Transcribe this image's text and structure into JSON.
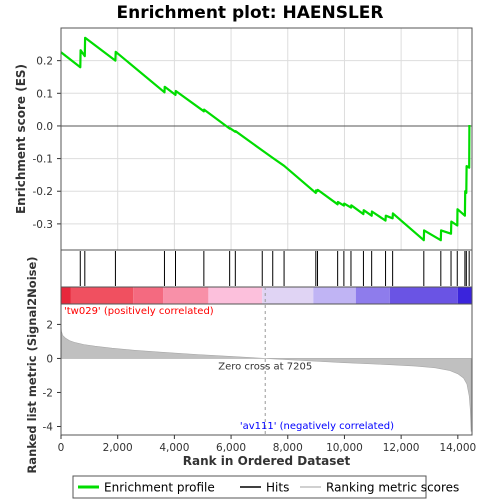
{
  "chart_data": {
    "type": "line",
    "title": "Enrichment plot: HAENSLER",
    "x_range": [
      0,
      14500
    ],
    "x_ticks": [
      0,
      2000,
      4000,
      6000,
      8000,
      10000,
      12000,
      14000
    ],
    "x_tick_labels": [
      "0",
      "2,000",
      "4,000",
      "6,000",
      "8,000",
      "10,000",
      "12,000",
      "14,000"
    ],
    "xlabel": "Rank in Ordered Dataset",
    "es_panel": {
      "ylabel": "Enrichment score (ES)",
      "ylim": [
        -0.38,
        0.3
      ],
      "y_ticks": [
        0.2,
        0.1,
        0.0,
        -0.1,
        -0.2,
        -0.3
      ],
      "y_tick_labels": [
        "0.2",
        "0.1",
        "0.0",
        "-0.1",
        "-0.2",
        "-0.3"
      ],
      "series_name": "Enrichment profile",
      "color": "#00dd00",
      "profile": [
        [
          0,
          0.226
        ],
        [
          680,
          0.18
        ],
        [
          690,
          0.232
        ],
        [
          840,
          0.214
        ],
        [
          850,
          0.27
        ],
        [
          1920,
          0.2
        ],
        [
          1930,
          0.227
        ],
        [
          3650,
          0.103
        ],
        [
          3660,
          0.12
        ],
        [
          4040,
          0.095
        ],
        [
          4050,
          0.107
        ],
        [
          5040,
          0.045
        ],
        [
          5050,
          0.05
        ],
        [
          5950,
          -0.008
        ],
        [
          5960,
          -0.007
        ],
        [
          6150,
          -0.018
        ],
        [
          6160,
          -0.016
        ],
        [
          7100,
          -0.075
        ],
        [
          7470,
          -0.098
        ],
        [
          7870,
          -0.122
        ],
        [
          8990,
          -0.205
        ],
        [
          9000,
          -0.197
        ],
        [
          9050,
          -0.2
        ],
        [
          9060,
          -0.196
        ],
        [
          9760,
          -0.24
        ],
        [
          9770,
          -0.233
        ],
        [
          9980,
          -0.244
        ],
        [
          9990,
          -0.238
        ],
        [
          10230,
          -0.25
        ],
        [
          10240,
          -0.243
        ],
        [
          10670,
          -0.27
        ],
        [
          10680,
          -0.258
        ],
        [
          10960,
          -0.275
        ],
        [
          10970,
          -0.262
        ],
        [
          11450,
          -0.29
        ],
        [
          11460,
          -0.275
        ],
        [
          11700,
          -0.283
        ],
        [
          11710,
          -0.268
        ],
        [
          12800,
          -0.35
        ],
        [
          12810,
          -0.32
        ],
        [
          13400,
          -0.35
        ],
        [
          13410,
          -0.32
        ],
        [
          13760,
          -0.33
        ],
        [
          13770,
          -0.293
        ],
        [
          13980,
          -0.305
        ],
        [
          13990,
          -0.255
        ],
        [
          14250,
          -0.275
        ],
        [
          14260,
          -0.2
        ],
        [
          14300,
          -0.205
        ],
        [
          14310,
          -0.123
        ],
        [
          14400,
          -0.128
        ],
        [
          14410,
          0.003
        ]
      ]
    },
    "hits": {
      "series_name": "Hits",
      "positions": [
        680,
        840,
        1920,
        3650,
        4040,
        5040,
        5950,
        6150,
        7100,
        7470,
        7870,
        8990,
        9050,
        9760,
        9980,
        10230,
        10670,
        10960,
        11450,
        11700,
        12800,
        13400,
        13760,
        13980,
        14250,
        14300,
        14400
      ]
    },
    "color_bar": {
      "positive_color": "#ff0000",
      "negative_color": "#0000ff",
      "segments": [
        {
          "x0": 0,
          "x1": 350,
          "color": "#e8283c"
        },
        {
          "x0": 350,
          "x1": 2550,
          "color": "#f05060"
        },
        {
          "x0": 2550,
          "x1": 3600,
          "color": "#f46a80"
        },
        {
          "x0": 3600,
          "x1": 5200,
          "color": "#f890a8"
        },
        {
          "x0": 5200,
          "x1": 7100,
          "color": "#fcc0dc"
        },
        {
          "x0": 7100,
          "x1": 8900,
          "color": "#e0d4f4"
        },
        {
          "x0": 8900,
          "x1": 10400,
          "color": "#c0b4f4"
        },
        {
          "x0": 10400,
          "x1": 11600,
          "color": "#8e7cec"
        },
        {
          "x0": 11600,
          "x1": 14000,
          "color": "#6a54e4"
        },
        {
          "x0": 14000,
          "x1": 14500,
          "color": "#3a24dc"
        }
      ]
    },
    "metric_panel": {
      "ylabel": "Ranked list metric (Signal2Noise)",
      "ylim": [
        -4.5,
        3.2
      ],
      "y_ticks": [
        2,
        0,
        -2,
        -4
      ],
      "y_tick_labels": [
        "2",
        "0",
        "-2",
        "-4"
      ],
      "series_name": "Ranking metric scores",
      "color": "#c0c0c0",
      "metric": [
        [
          0,
          2.0
        ],
        [
          15,
          1.6
        ],
        [
          60,
          1.35
        ],
        [
          150,
          1.2
        ],
        [
          300,
          1.05
        ],
        [
          500,
          0.93
        ],
        [
          800,
          0.82
        ],
        [
          1200,
          0.72
        ],
        [
          1800,
          0.6
        ],
        [
          2600,
          0.48
        ],
        [
          3600,
          0.36
        ],
        [
          4800,
          0.23
        ],
        [
          6000,
          0.12
        ],
        [
          7205,
          0.0
        ],
        [
          8500,
          -0.12
        ],
        [
          10000,
          -0.25
        ],
        [
          11500,
          -0.36
        ],
        [
          12500,
          -0.45
        ],
        [
          13200,
          -0.55
        ],
        [
          13700,
          -0.7
        ],
        [
          14000,
          -0.9
        ],
        [
          14200,
          -1.15
        ],
        [
          14320,
          -1.5
        ],
        [
          14400,
          -2.2
        ],
        [
          14440,
          -3.0
        ],
        [
          14470,
          -4.3
        ]
      ],
      "zero_cross_rank": 7205,
      "zero_cross_label": "Zero cross at 7205",
      "positive_label": "'tw029' (positively correlated)",
      "negative_label": "'av111' (negatively correlated)"
    },
    "legend": {
      "placement": "bottom",
      "entries": [
        {
          "label": "Enrichment profile",
          "color": "#00dd00"
        },
        {
          "label": "Hits",
          "color": "#000000"
        },
        {
          "label": "Ranking metric scores",
          "color": "#c0c0c0"
        }
      ]
    }
  }
}
